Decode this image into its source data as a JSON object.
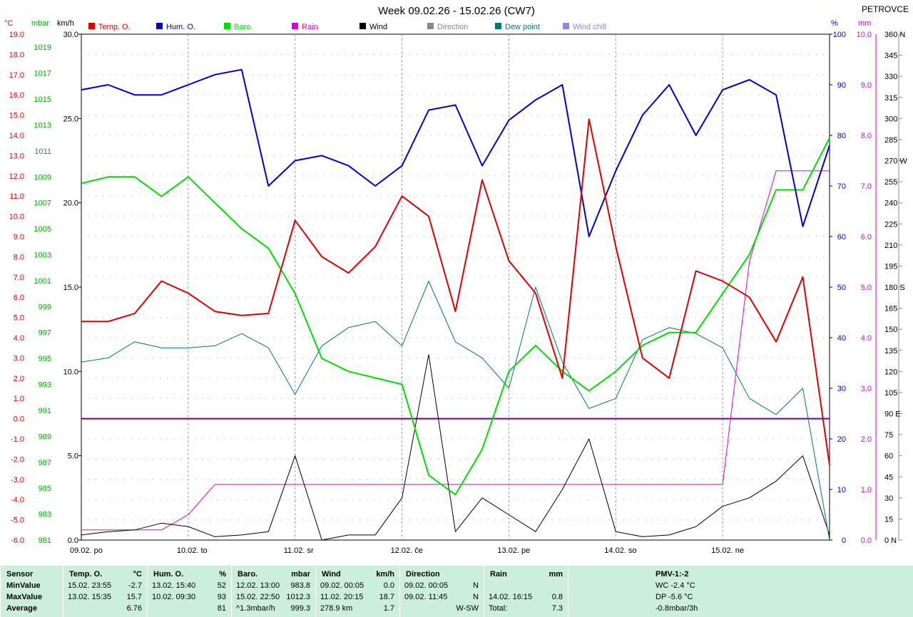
{
  "title": "Week 09.02.26 - 15.02.26 (CW7)",
  "station": "PETROVCE",
  "unit_labels": {
    "temp": "°C",
    "baro": "mbar",
    "wind": "km/h",
    "hum": "%",
    "rain": "mm"
  },
  "colors": {
    "temp": "#dd0000",
    "hum": "#0000cc",
    "baro": "#00dd00",
    "rain": "#dd00dd",
    "wind": "#000000",
    "direction": "#888888",
    "dewpoint": "#007777",
    "windchill": "#8888ee",
    "zero": "#660099"
  },
  "legend": [
    {
      "label": "Temp. O.",
      "color": "#dd0000"
    },
    {
      "label": "Hum. O.",
      "color": "#0000cc"
    },
    {
      "label": "Baro.",
      "color": "#00dd00"
    },
    {
      "label": "Rain",
      "color": "#dd00dd"
    },
    {
      "label": "Wind",
      "color": "#000000"
    },
    {
      "label": "Direction",
      "color": "#888888"
    },
    {
      "label": "Dew point",
      "color": "#007777"
    },
    {
      "label": "Wind chill",
      "color": "#8888ee"
    }
  ],
  "axes": {
    "temp_ticks": [
      "19.0",
      "18.0",
      "17.0",
      "16.0",
      "15.0",
      "14.0",
      "13.0",
      "12.0",
      "11.0",
      "10.0",
      "9.0",
      "8.0",
      "7.0",
      "6.0",
      "5.0",
      "4.0",
      "3.0",
      "2.0",
      "1.0",
      "0.0",
      "-1.0",
      "-2.0",
      "-3.0",
      "-4.0",
      "-5.0",
      "-6.0"
    ],
    "temp_range": [
      -6,
      19
    ],
    "baro_ticks": [
      "1019",
      "1017",
      "1015",
      "1013",
      "1011",
      "1009",
      "1007",
      "1005",
      "1003",
      "1001",
      "999",
      "997",
      "995",
      "993",
      "991",
      "989",
      "987",
      "985",
      "983",
      "981"
    ],
    "baro_range": [
      981,
      1020
    ],
    "wind_ticks": [
      "30.0",
      "25.0",
      "20.0",
      "15.0",
      "10.0",
      "5.0",
      "0.0"
    ],
    "wind_range": [
      0,
      30
    ],
    "hum_ticks": [
      "100",
      "90",
      "80",
      "70",
      "60",
      "50",
      "40",
      "30",
      "20",
      "10",
      "0"
    ],
    "hum_range": [
      0,
      100
    ],
    "rain_ticks": [
      "10.0",
      "9.0",
      "8.0",
      "7.0",
      "6.0",
      "5.0",
      "4.0",
      "3.0",
      "2.0",
      "1.0",
      "0.0"
    ],
    "rain_range": [
      0,
      10
    ],
    "dir_ticks": [
      "360 N",
      "345",
      "330",
      "315",
      "300",
      "285",
      "270 W",
      "255",
      "240",
      "225",
      "210",
      "195",
      "180 S",
      "165",
      "150",
      "135",
      "120",
      "105",
      "90 E",
      "75",
      "60",
      "45",
      "30",
      "15",
      "0 N"
    ],
    "dir_range": [
      0,
      360
    ],
    "day_labels": [
      "09.02.  po",
      "10.02.  to",
      "11.02.  sr",
      "12.02.  če",
      "13.02.  pe",
      "14.02.  so",
      "15.02.  ne"
    ]
  },
  "chart_data": {
    "type": "line",
    "title": "Week 09.02.26 - 15.02.26 (CW7)",
    "x": [
      0,
      0.25,
      0.5,
      0.75,
      1,
      1.25,
      1.5,
      1.75,
      2,
      2.25,
      2.5,
      2.75,
      3,
      3.25,
      3.5,
      3.75,
      4,
      4.25,
      4.5,
      4.75,
      5,
      5.25,
      5.5,
      5.75,
      6,
      6.25,
      6.5,
      6.75,
      7
    ],
    "x_unit": "days since 09.02.26",
    "series": [
      {
        "name": "Temp. O.",
        "unit": "°C",
        "values": [
          4.8,
          4.8,
          5.2,
          6.8,
          6.2,
          5.3,
          5.1,
          5.2,
          9.8,
          8.0,
          7.2,
          8.5,
          11.0,
          10.0,
          5.3,
          11.8,
          7.8,
          6.2,
          2.0,
          14.8,
          8.5,
          3.0,
          2.0,
          7.3,
          6.8,
          6.0,
          3.8,
          7.0,
          -2.3
        ]
      },
      {
        "name": "Hum. O.",
        "unit": "%",
        "values": [
          89,
          90,
          88,
          88,
          90,
          92,
          93,
          70,
          75,
          76,
          74,
          70,
          74,
          85,
          86,
          74,
          83,
          87,
          90,
          60,
          73,
          84,
          90,
          80,
          89,
          91,
          88,
          62,
          78
        ]
      },
      {
        "name": "Baro.",
        "unit": "mbar",
        "values": [
          1008.5,
          1009,
          1009,
          1007.5,
          1009,
          1007,
          1005,
          1003.5,
          1000,
          995,
          994,
          993.5,
          993,
          986,
          984.5,
          988,
          994,
          996,
          994,
          992.5,
          994,
          996,
          997,
          997,
          1000,
          1003,
          1008,
          1008,
          1012
        ]
      },
      {
        "name": "Dew point",
        "unit": "°C",
        "values": [
          2.8,
          3.0,
          3.8,
          3.5,
          3.5,
          3.6,
          4.2,
          3.5,
          1.2,
          3.6,
          4.5,
          4.8,
          3.6,
          6.8,
          3.8,
          3.0,
          1.5,
          6.5,
          2.8,
          0.5,
          1.0,
          3.9,
          4.5,
          4.2,
          3.5,
          1.0,
          0.2,
          1.5,
          -6.0
        ]
      },
      {
        "name": "Wind",
        "unit": "km/h",
        "values": [
          0.3,
          0.5,
          0.6,
          1.0,
          0.8,
          0.2,
          0.3,
          0.5,
          5.0,
          0.0,
          0.3,
          0.3,
          2.5,
          11.0,
          0.5,
          2.5,
          1.5,
          0.5,
          3.0,
          6.0,
          0.5,
          0.2,
          0.3,
          0.8,
          2.0,
          2.5,
          3.5,
          5.0,
          0.3
        ]
      },
      {
        "name": "Rain",
        "unit": "mm",
        "values": [
          0.2,
          0.2,
          0.2,
          0.2,
          0.5,
          1.1,
          1.1,
          1.1,
          1.1,
          1.1,
          1.1,
          1.1,
          1.1,
          1.1,
          1.1,
          1.1,
          1.1,
          1.1,
          1.1,
          1.1,
          1.1,
          1.1,
          1.1,
          1.1,
          1.1,
          5.5,
          7.3,
          7.3,
          7.3
        ]
      }
    ],
    "temp_ylim": [
      -6,
      19
    ],
    "grid": true
  },
  "stats": {
    "headers": [
      {
        "name": "Sensor"
      },
      {
        "name": "Temp. O.",
        "unit": "°C"
      },
      {
        "name": "Hum. O.",
        "unit": "%"
      },
      {
        "name": "Baro.",
        "unit": "mbar"
      },
      {
        "name": "Wind",
        "unit": "km/h"
      },
      {
        "name": "Direction"
      },
      {
        "name": "Rain",
        "unit": "mm"
      },
      {
        "name": "PMV-1:-2"
      }
    ],
    "row_labels": [
      "MinValue",
      "MaxValue",
      "Average"
    ],
    "temp": [
      [
        "15.02.  23:55",
        "-2.7"
      ],
      [
        "13.02.  15:35",
        "15.7"
      ],
      [
        "",
        "6.76"
      ]
    ],
    "hum": [
      [
        "13.02.  15:40",
        "52"
      ],
      [
        "10.02.  09:30",
        "93"
      ],
      [
        "",
        "81"
      ]
    ],
    "baro": [
      [
        "12.02.  13:00",
        "983.8"
      ],
      [
        "15.02.  22:50",
        "1012.3"
      ],
      [
        "^1.3mbar/h",
        "999.3"
      ]
    ],
    "wind": [
      [
        "09.02.  00:05",
        "0.0"
      ],
      [
        "11.02.  20:15",
        "18.7"
      ],
      [
        "278.9 km",
        "1.7"
      ]
    ],
    "dir": [
      [
        "09.02.  00:05",
        "N"
      ],
      [
        "09.02.  11:45",
        "N"
      ],
      [
        "",
        "W-SW"
      ]
    ],
    "rain": [
      [
        "",
        ""
      ],
      [
        "14.02.  16:15",
        "0.8"
      ],
      [
        "Total:",
        "7.3"
      ]
    ],
    "pmv": [
      "WC -2.4 °C",
      "DP -5.6 °C",
      "-0.8mbar/3h"
    ]
  }
}
